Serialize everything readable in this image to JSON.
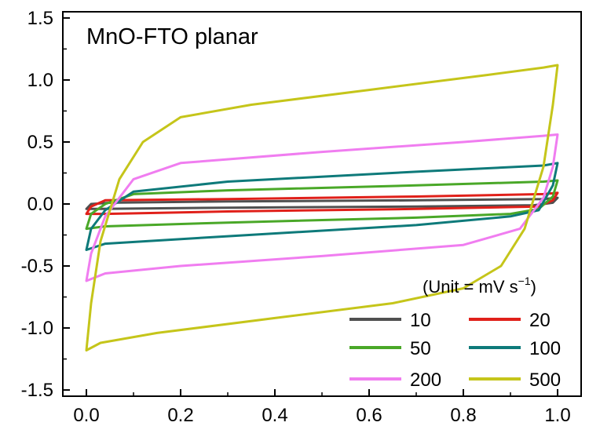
{
  "chart_data": {
    "type": "line",
    "title": "MnO-FTO planar",
    "xlabel": "",
    "ylabel": "",
    "xlim": [
      -0.05,
      1.05
    ],
    "ylim": [
      -1.55,
      1.55
    ],
    "x_ticks": [
      "0.0",
      "0.2",
      "0.4",
      "0.6",
      "0.8",
      "1.0"
    ],
    "x_tick_values": [
      0.0,
      0.2,
      0.4,
      0.6,
      0.8,
      1.0
    ],
    "y_ticks": [
      "1.5",
      "1.0",
      "0.5",
      "0.0",
      "-0.5",
      "-1.0",
      "-1.5"
    ],
    "y_tick_values": [
      1.5,
      1.0,
      0.5,
      0.0,
      -0.5,
      -1.0,
      -1.5
    ],
    "grid": false,
    "legend": {
      "placement": "bottom-right",
      "unit_prefix": "(Unit = mV s",
      "unit_sup": "−1",
      "unit_suffix": ")"
    },
    "series": [
      {
        "name": "10",
        "color": "#505050",
        "upper": {
          "x": [
            0.0,
            0.01,
            0.05,
            0.3,
            0.7,
            0.97,
            1.0
          ],
          "y": [
            -0.04,
            0.0,
            0.01,
            0.02,
            0.03,
            0.04,
            0.05
          ]
        },
        "lower": {
          "x": [
            1.0,
            0.99,
            0.95,
            0.7,
            0.3,
            0.03,
            0.0
          ],
          "y": [
            0.05,
            0.01,
            -0.01,
            -0.02,
            -0.03,
            -0.04,
            -0.04
          ]
        }
      },
      {
        "name": "20",
        "color": "#e0201a",
        "upper": {
          "x": [
            0.0,
            0.01,
            0.04,
            0.3,
            0.7,
            0.97,
            1.0
          ],
          "y": [
            -0.08,
            -0.02,
            0.03,
            0.04,
            0.06,
            0.08,
            0.09
          ]
        },
        "lower": {
          "x": [
            1.0,
            0.99,
            0.96,
            0.7,
            0.3,
            0.04,
            0.0
          ],
          "y": [
            0.09,
            0.03,
            -0.02,
            -0.04,
            -0.06,
            -0.08,
            -0.08
          ]
        }
      },
      {
        "name": "50",
        "color": "#4aa828",
        "upper": {
          "x": [
            0.0,
            0.01,
            0.04,
            0.1,
            0.3,
            0.7,
            0.97,
            1.0
          ],
          "y": [
            -0.2,
            -0.08,
            0.0,
            0.08,
            0.11,
            0.15,
            0.18,
            0.19
          ]
        },
        "lower": {
          "x": [
            1.0,
            0.99,
            0.96,
            0.9,
            0.7,
            0.3,
            0.04,
            0.0
          ],
          "y": [
            0.19,
            0.06,
            -0.04,
            -0.08,
            -0.11,
            -0.15,
            -0.18,
            -0.2
          ]
        }
      },
      {
        "name": "100",
        "color": "#0e7a7a",
        "upper": {
          "x": [
            0.0,
            0.01,
            0.04,
            0.1,
            0.3,
            0.7,
            0.97,
            1.0
          ],
          "y": [
            -0.37,
            -0.2,
            -0.05,
            0.1,
            0.18,
            0.26,
            0.31,
            0.33
          ]
        },
        "lower": {
          "x": [
            1.0,
            0.99,
            0.96,
            0.9,
            0.7,
            0.3,
            0.04,
            0.0
          ],
          "y": [
            0.33,
            0.15,
            -0.05,
            -0.1,
            -0.17,
            -0.26,
            -0.32,
            -0.37
          ]
        }
      },
      {
        "name": "200",
        "color": "#f07df0",
        "upper": {
          "x": [
            0.0,
            0.01,
            0.04,
            0.1,
            0.2,
            0.5,
            0.8,
            0.97,
            1.0
          ],
          "y": [
            -0.62,
            -0.4,
            -0.1,
            0.2,
            0.33,
            0.42,
            0.5,
            0.55,
            0.56
          ]
        },
        "lower": {
          "x": [
            1.0,
            0.99,
            0.97,
            0.92,
            0.8,
            0.5,
            0.2,
            0.04,
            0.0
          ],
          "y": [
            0.56,
            0.3,
            0.05,
            -0.2,
            -0.33,
            -0.42,
            -0.5,
            -0.56,
            -0.62
          ]
        }
      },
      {
        "name": "500",
        "color": "#c5c51a",
        "upper": {
          "x": [
            0.0,
            0.01,
            0.03,
            0.07,
            0.12,
            0.2,
            0.35,
            0.6,
            0.85,
            0.97,
            1.0
          ],
          "y": [
            -1.18,
            -0.8,
            -0.3,
            0.2,
            0.5,
            0.7,
            0.8,
            0.92,
            1.04,
            1.1,
            1.12
          ]
        },
        "lower": {
          "x": [
            1.0,
            0.99,
            0.97,
            0.93,
            0.88,
            0.8,
            0.65,
            0.4,
            0.15,
            0.03,
            0.0
          ],
          "y": [
            1.12,
            0.8,
            0.3,
            -0.2,
            -0.5,
            -0.68,
            -0.8,
            -0.92,
            -1.04,
            -1.12,
            -1.18
          ]
        }
      }
    ]
  }
}
